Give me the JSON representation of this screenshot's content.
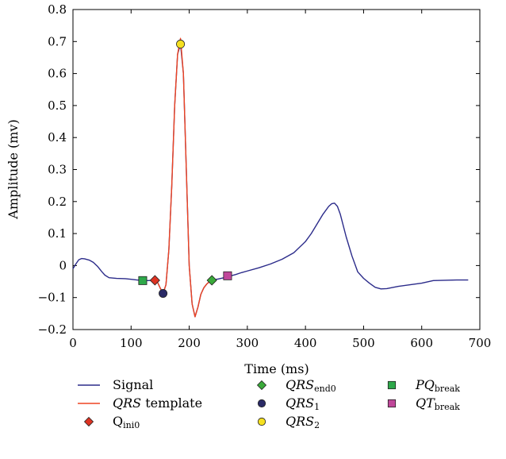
{
  "chart_data": {
    "type": "line",
    "title": "",
    "xlabel": "Time (ms)",
    "ylabel": "Amplitude (mv)",
    "xlim": [
      0,
      700
    ],
    "ylim": [
      -0.2,
      0.8
    ],
    "xticks": [
      0,
      100,
      200,
      300,
      400,
      500,
      600,
      700
    ],
    "yticks": [
      -0.2,
      -0.1,
      0,
      0.1,
      0.2,
      0.3,
      0.4,
      0.5,
      0.6,
      0.7,
      0.8
    ],
    "xtick_labels": [
      "0",
      "100",
      "200",
      "300",
      "400",
      "500",
      "600",
      "700"
    ],
    "ytick_labels": [
      "−0.2",
      "−0.1",
      "0",
      "0.1",
      "0.2",
      "0.3",
      "0.4",
      "0.5",
      "0.6",
      "0.7",
      "0.8"
    ],
    "grid": false,
    "legend_position": "bottom",
    "series": [
      {
        "name": "Signal",
        "kind": "line",
        "color": "#2b2b8a",
        "x": [
          0,
          5,
          10,
          15,
          20,
          28,
          35,
          42,
          50,
          55,
          62,
          75,
          90,
          100,
          110,
          118,
          125,
          130,
          135,
          140,
          145,
          150,
          155,
          160,
          165,
          170,
          175,
          180,
          185,
          190,
          195,
          200,
          205,
          210,
          215,
          220,
          225,
          230,
          235,
          240,
          250,
          260,
          270,
          280,
          290,
          300,
          320,
          340,
          360,
          380,
          400,
          410,
          420,
          430,
          440,
          445,
          450,
          455,
          460,
          470,
          480,
          490,
          500,
          510,
          520,
          530,
          540,
          560,
          580,
          600,
          620,
          640,
          660,
          680
        ],
        "y": [
          -0.01,
          0.005,
          0.018,
          0.022,
          0.021,
          0.017,
          0.01,
          -0.002,
          -0.02,
          -0.03,
          -0.038,
          -0.04,
          -0.041,
          -0.043,
          -0.045,
          -0.046,
          -0.047,
          -0.047,
          -0.046,
          -0.045,
          -0.05,
          -0.07,
          -0.087,
          -0.06,
          0.05,
          0.25,
          0.5,
          0.66,
          0.693,
          0.6,
          0.3,
          0.0,
          -0.12,
          -0.16,
          -0.13,
          -0.09,
          -0.07,
          -0.058,
          -0.05,
          -0.045,
          -0.042,
          -0.038,
          -0.033,
          -0.028,
          -0.022,
          -0.017,
          -0.007,
          0.005,
          0.02,
          0.04,
          0.075,
          0.1,
          0.13,
          0.16,
          0.185,
          0.193,
          0.195,
          0.185,
          0.16,
          0.09,
          0.03,
          -0.02,
          -0.04,
          -0.055,
          -0.068,
          -0.073,
          -0.072,
          -0.065,
          -0.06,
          -0.055,
          -0.047,
          -0.046,
          -0.045,
          -0.045
        ]
      },
      {
        "name": "QRS template",
        "kind": "line",
        "color": "#ee4422",
        "x": [
          140,
          145,
          150,
          155,
          160,
          165,
          170,
          175,
          180,
          185,
          190,
          195,
          200,
          205,
          210,
          215,
          220,
          225,
          230,
          235,
          240
        ],
        "y": [
          -0.045,
          -0.05,
          -0.07,
          -0.087,
          -0.06,
          0.05,
          0.25,
          0.5,
          0.66,
          0.71,
          0.6,
          0.3,
          0.0,
          -0.12,
          -0.16,
          -0.13,
          -0.09,
          -0.07,
          -0.058,
          -0.05,
          -0.045
        ]
      },
      {
        "name": "Qini0",
        "kind": "marker",
        "marker": "diamond",
        "color": "#dd3322",
        "x": [
          141
        ],
        "y": [
          -0.046
        ]
      },
      {
        "name": "QRSend0",
        "kind": "marker",
        "marker": "diamond",
        "color": "#3aaa3a",
        "x": [
          239
        ],
        "y": [
          -0.046
        ]
      },
      {
        "name": "QRS1",
        "kind": "marker",
        "marker": "circle",
        "color": "#2a2a66",
        "x": [
          155
        ],
        "y": [
          -0.087
        ]
      },
      {
        "name": "QRS2",
        "kind": "marker",
        "marker": "circle",
        "color": "#f5e020",
        "x": [
          185
        ],
        "y": [
          0.692
        ]
      },
      {
        "name": "PQbreak",
        "kind": "marker",
        "marker": "square",
        "color": "#2ea84a",
        "x": [
          120
        ],
        "y": [
          -0.047
        ]
      },
      {
        "name": "QTbreak",
        "kind": "marker",
        "marker": "square",
        "color": "#c0479a",
        "x": [
          266
        ],
        "y": [
          -0.032
        ]
      }
    ],
    "legend": [
      {
        "symbol": "line",
        "color": "#2b2b8a",
        "parts": [
          {
            "text": "Signal"
          }
        ]
      },
      {
        "symbol": "line",
        "color": "#ee4422",
        "parts": [
          {
            "text": "QRS",
            "style": "italic"
          },
          {
            "text": " template"
          }
        ]
      },
      {
        "symbol": "diamond",
        "color": "#dd3322",
        "parts": [
          {
            "text": "Q"
          },
          {
            "text": "ini0",
            "style": "sub"
          }
        ]
      },
      {
        "symbol": "diamond",
        "color": "#3aaa3a",
        "parts": [
          {
            "text": "QRS",
            "style": "italic"
          },
          {
            "text": "end0",
            "style": "sub"
          }
        ]
      },
      {
        "symbol": "circle",
        "color": "#2a2a66",
        "parts": [
          {
            "text": "QRS",
            "style": "italic"
          },
          {
            "text": "1",
            "style": "sub"
          }
        ]
      },
      {
        "symbol": "circle",
        "color": "#f5e020",
        "parts": [
          {
            "text": "QRS",
            "style": "italic"
          },
          {
            "text": "2",
            "style": "sub"
          }
        ]
      },
      {
        "symbol": "square",
        "color": "#2ea84a",
        "parts": [
          {
            "text": "PQ",
            "style": "italic"
          },
          {
            "text": "break",
            "style": "sub"
          }
        ]
      },
      {
        "symbol": "square",
        "color": "#c0479a",
        "parts": [
          {
            "text": "QT",
            "style": "italic"
          },
          {
            "text": "break",
            "style": "sub"
          }
        ]
      }
    ]
  }
}
